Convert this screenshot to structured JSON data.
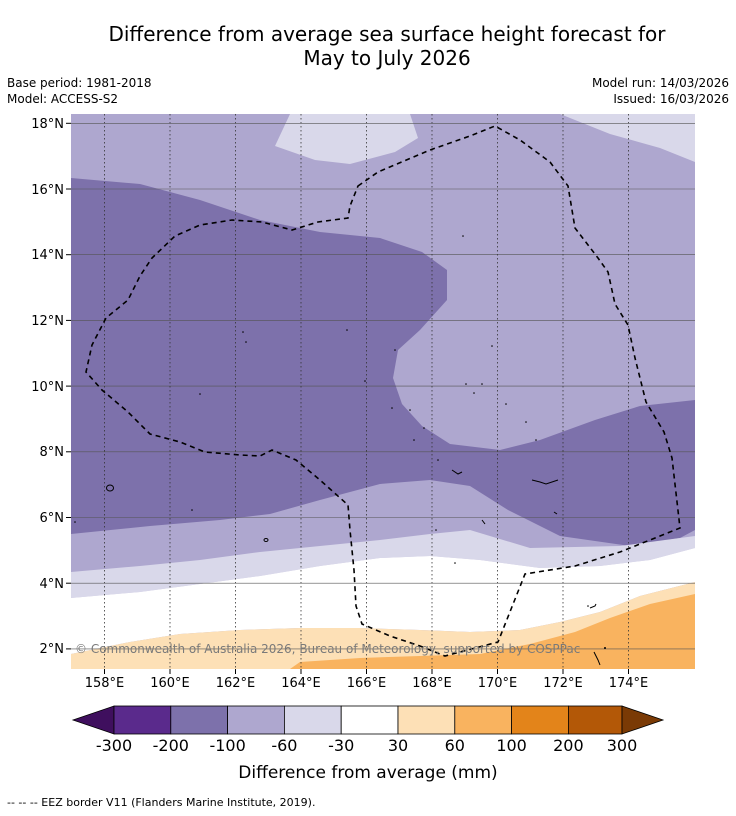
{
  "title": {
    "line1": "Difference from average sea surface height forecast for",
    "line2": "May to July 2026"
  },
  "meta": {
    "base_period": "Base period: 1981-2018",
    "model": "Model: ACCESS-S2",
    "model_run": "Model run: 14/03/2026",
    "issued": "Issued: 16/03/2026"
  },
  "map": {
    "lat_labels": [
      "18°N",
      "16°N",
      "14°N",
      "12°N",
      "10°N",
      "8°N",
      "6°N",
      "4°N",
      "2°N"
    ],
    "lon_labels": [
      "158°E",
      "160°E",
      "162°E",
      "164°E",
      "166°E",
      "168°E",
      "170°E",
      "172°E",
      "174°E"
    ],
    "copyright": "© Commonwealth of Australia 2026, Bureau of Meteorology, supported by COSPPac",
    "lat_range": [
      1.5,
      18.2
    ],
    "lon_range": [
      157.0,
      176.0
    ]
  },
  "colorbar": {
    "title": "Difference from average (mm)",
    "tick_labels": [
      "-300",
      "-200",
      "-100",
      "-60",
      "-30",
      "30",
      "60",
      "100",
      "200",
      "300"
    ],
    "colors": [
      "#3f0f5e",
      "#5a2a8c",
      "#7d71ab",
      "#aea7cf",
      "#d9d8ea",
      "#ffffff",
      "#fde0b6",
      "#f9b35f",
      "#e3841a",
      "#b35807",
      "#7a3a05"
    ]
  },
  "footnote": "-- -- -- EEZ border V11 (Flanders Marine Institute, 2019)."
}
